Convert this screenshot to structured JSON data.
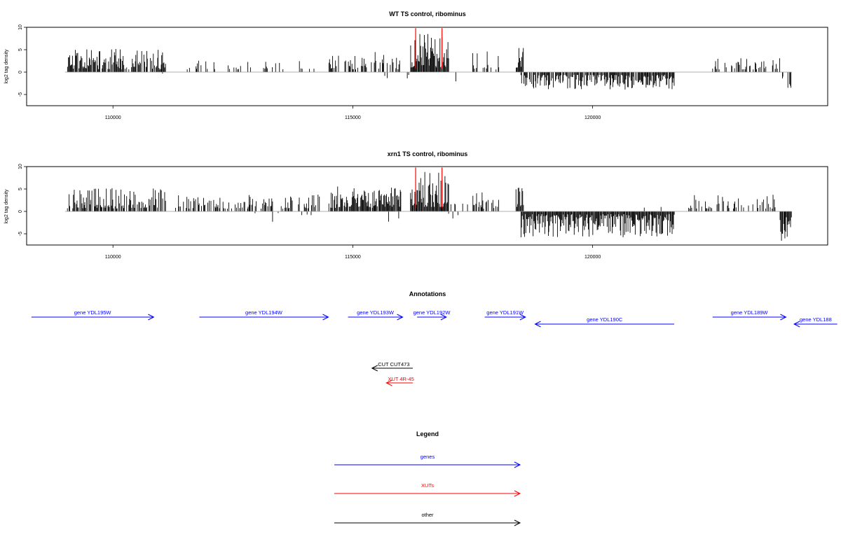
{
  "chart_data": [
    {
      "type": "bar",
      "title": "WT TS control, ribominus",
      "ylabel": "log2 tag density",
      "xlabel": "",
      "xlim": [
        108200,
        124900
      ],
      "ylim": [
        -7.5,
        10
      ],
      "xticks": [
        110000,
        115000,
        120000
      ],
      "yticks": [
        -5,
        0,
        5,
        10
      ],
      "grid": false,
      "segments": [
        {
          "start": 109050,
          "end": 111100,
          "sign": 1,
          "min": 0.6,
          "max": 5.2,
          "density": 0.75,
          "seed": 11
        },
        {
          "start": 111000,
          "end": 111150,
          "sign": -1,
          "min": 0.3,
          "max": 1.0,
          "density": 0.2,
          "seed": 12
        },
        {
          "start": 111500,
          "end": 114300,
          "sign": 1,
          "min": 0.6,
          "max": 2.6,
          "density": 0.18,
          "seed": 13
        },
        {
          "start": 114500,
          "end": 116000,
          "sign": 1,
          "min": 0.6,
          "max": 4.5,
          "density": 0.45,
          "seed": 14
        },
        {
          "start": 115500,
          "end": 116200,
          "sign": -1,
          "min": 0.6,
          "max": 2.6,
          "density": 0.06,
          "seed": 15
        },
        {
          "start": 116200,
          "end": 117000,
          "sign": 1,
          "min": 1.0,
          "max": 9.2,
          "density": 1.0,
          "seed": 16
        },
        {
          "start": 116950,
          "end": 117200,
          "sign": -1,
          "min": 0.5,
          "max": 2.4,
          "density": 0.12,
          "seed": 17
        },
        {
          "start": 117500,
          "end": 118050,
          "sign": 1,
          "min": 0.6,
          "max": 4.8,
          "density": 0.35,
          "seed": 18
        },
        {
          "start": 118400,
          "end": 118550,
          "sign": 1,
          "min": 1.0,
          "max": 5.6,
          "density": 0.9,
          "seed": 19
        },
        {
          "start": 118500,
          "end": 121700,
          "sign": -1,
          "min": 0.6,
          "max": 3.9,
          "density": 0.85,
          "seed": 20
        },
        {
          "start": 122500,
          "end": 123900,
          "sign": 1,
          "min": 0.6,
          "max": 3.3,
          "density": 0.35,
          "seed": 21
        },
        {
          "start": 123950,
          "end": 124150,
          "sign": -1,
          "min": 1.0,
          "max": 4.4,
          "density": 0.5,
          "seed": 22
        }
      ],
      "highlight_color": "#ff0000",
      "highlight_positions": [
        116310,
        116860
      ]
    },
    {
      "type": "bar",
      "title": "xrn1 TS control, ribominus",
      "ylabel": "log2 tag density",
      "xlabel": "",
      "xlim": [
        108200,
        124900
      ],
      "ylim": [
        -7.5,
        10
      ],
      "xticks": [
        110000,
        115000,
        120000
      ],
      "yticks": [
        -5,
        0,
        5,
        10
      ],
      "grid": false,
      "segments": [
        {
          "start": 109050,
          "end": 111100,
          "sign": 1,
          "min": 0.6,
          "max": 5.2,
          "density": 0.7,
          "seed": 31
        },
        {
          "start": 111300,
          "end": 114300,
          "sign": 1,
          "min": 0.6,
          "max": 3.8,
          "density": 0.45,
          "seed": 32
        },
        {
          "start": 112300,
          "end": 114300,
          "sign": -1,
          "min": 0.3,
          "max": 2.8,
          "density": 0.05,
          "seed": 33
        },
        {
          "start": 114500,
          "end": 116000,
          "sign": 1,
          "min": 0.8,
          "max": 5.6,
          "density": 0.9,
          "seed": 34
        },
        {
          "start": 115500,
          "end": 116200,
          "sign": -1,
          "min": 0.6,
          "max": 2.8,
          "density": 0.12,
          "seed": 35
        },
        {
          "start": 116200,
          "end": 117000,
          "sign": 1,
          "min": 1.0,
          "max": 9.3,
          "density": 1.0,
          "seed": 36
        },
        {
          "start": 116950,
          "end": 117300,
          "sign": -1,
          "min": 0.5,
          "max": 2.2,
          "density": 0.12,
          "seed": 37
        },
        {
          "start": 117000,
          "end": 117400,
          "sign": 1,
          "min": 0.5,
          "max": 2.4,
          "density": 0.2,
          "seed": 38
        },
        {
          "start": 117500,
          "end": 118050,
          "sign": 1,
          "min": 0.6,
          "max": 4.6,
          "density": 0.55,
          "seed": 39
        },
        {
          "start": 118400,
          "end": 118550,
          "sign": 1,
          "min": 1.0,
          "max": 5.6,
          "density": 0.9,
          "seed": 40
        },
        {
          "start": 118500,
          "end": 121700,
          "sign": -1,
          "min": 0.6,
          "max": 5.8,
          "density": 1.0,
          "seed": 41
        },
        {
          "start": 121000,
          "end": 121600,
          "sign": 1,
          "min": 0.4,
          "max": 2.0,
          "density": 0.05,
          "seed": 42
        },
        {
          "start": 122000,
          "end": 123800,
          "sign": 1,
          "min": 0.6,
          "max": 3.8,
          "density": 0.4,
          "seed": 43
        },
        {
          "start": 123900,
          "end": 124150,
          "sign": -1,
          "min": 1.2,
          "max": 7.0,
          "density": 0.7,
          "seed": 44
        }
      ],
      "highlight_color": "#ff0000",
      "highlight_positions": [
        116310,
        116860
      ]
    }
  ],
  "annotations": {
    "title": "Annotations",
    "genes": [
      {
        "label": "gene YDL195W",
        "start": 108300,
        "end": 110850,
        "strand": "+",
        "row": 0
      },
      {
        "label": "gene YDL194W",
        "start": 111800,
        "end": 114490,
        "strand": "+",
        "row": 0
      },
      {
        "label": "gene YDL193W",
        "start": 114900,
        "end": 116040,
        "strand": "+",
        "row": 0
      },
      {
        "label": "gene YDL192W",
        "start": 116340,
        "end": 116950,
        "strand": "+",
        "row": 0
      },
      {
        "label": "gene YDL191W",
        "start": 117750,
        "end": 118600,
        "strand": "+",
        "row": 0
      },
      {
        "label": "gene YDL190C",
        "start": 118800,
        "end": 121700,
        "strand": "-",
        "row": 1
      },
      {
        "label": "gene YDL189W",
        "start": 122500,
        "end": 124030,
        "strand": "+",
        "row": 0
      },
      {
        "label": "gene YDL188",
        "start": 124200,
        "end": 125100,
        "strand": "-",
        "row": 1
      }
    ],
    "others": [
      {
        "label": "CUT CUT473",
        "start": 115400,
        "end": 116250,
        "strand": "-",
        "kind": "other"
      },
      {
        "label": "XUT 4R-45",
        "start": 115700,
        "end": 116250,
        "strand": "-",
        "kind": "xut"
      }
    ]
  },
  "legend": {
    "title": "Legend",
    "items": [
      {
        "label": "genes",
        "color": "#0000ff"
      },
      {
        "label": "XUTs",
        "color": "#ff0000"
      },
      {
        "label": "other",
        "color": "#000000"
      }
    ]
  },
  "colors": {
    "gene": "#0000ff",
    "xut": "#ff0000",
    "other": "#000000",
    "bar": "#000000"
  }
}
